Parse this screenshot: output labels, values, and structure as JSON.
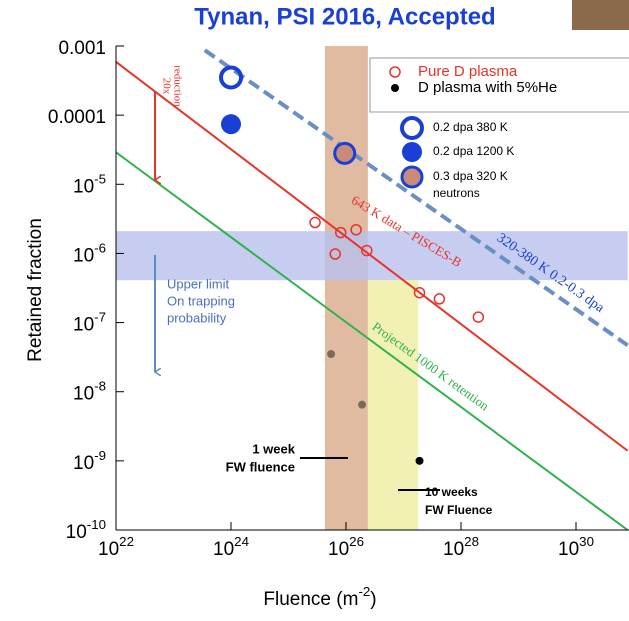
{
  "chart_data": {
    "type": "scatter",
    "title": "Tynan, PSI 2016, Accepted",
    "x_label": "Fluence (m^-2)",
    "y_label": "Retained fraction",
    "log_x": true,
    "log_y": true,
    "xlim": [
      1e+22,
      7.9e+30
    ],
    "ylim": [
      1e-10,
      0.001
    ],
    "xticks": [
      {
        "value": 1e+22,
        "label": "10^22"
      },
      {
        "value": 1e+24,
        "label": "10^24"
      },
      {
        "value": 1e+26,
        "label": "10^26"
      },
      {
        "value": 1e+28,
        "label": "10^28"
      },
      {
        "value": 1e+30,
        "label": "10^30"
      }
    ],
    "yticks": [
      {
        "value": 1e-10,
        "label": "10^-10"
      },
      {
        "value": 1e-09,
        "label": "10^-9"
      },
      {
        "value": 1e-08,
        "label": "10^-8"
      },
      {
        "value": 1e-07,
        "label": "10^-7"
      },
      {
        "value": 1e-06,
        "label": "10^-6"
      },
      {
        "value": 1e-05,
        "label": "10^-5"
      },
      0.0001,
      0.001
    ],
    "series": [
      {
        "name": "Pure D plasma",
        "color": "#e8332a",
        "marker": "open",
        "x": [
          2.9e+25,
          8.1e+25,
          1.5e+26,
          6.5e+25,
          2.3e+26,
          1.9e+27,
          4.2e+27,
          2e+28
        ],
        "values": [
          2.8e-06,
          2e-06,
          2.2e-06,
          9.8e-07,
          1.1e-06,
          2.7e-07,
          2.2e-07,
          1.2e-07
        ]
      },
      {
        "name": "D plasma with 5%He",
        "color": "#000000",
        "point_colors": [
          "#7a6a5a",
          "#7a6a5a",
          "#000000"
        ],
        "marker": "dot",
        "x": [
          5.5e+25,
          1.9e+26,
          1.9e+27
        ],
        "values": [
          3.5e-08,
          6.5e-09,
          1e-09
        ]
      },
      {
        "name": "0.2 dpa  380 K",
        "color": "#1a3fd6",
        "marker": "big-open",
        "x": [
          1e+24
        ],
        "values": [
          0.00035
        ]
      },
      {
        "name": "0.2 dpa  1200 K",
        "color": "#1a3fd6",
        "marker": "big-filled",
        "x": [
          1e+24
        ],
        "values": [
          7.4e-05
        ]
      },
      {
        "name": "0.3 dpa  320 K",
        "legend_note": "neutrons",
        "color": "#1a3fd6",
        "fill": "#c98a7a",
        "marker": "big-ring",
        "x": [
          9.5e+25
        ],
        "values": [
          2.8e-05
        ]
      }
    ],
    "lines": [
      {
        "color": "#e8332a",
        "dash": false,
        "x": [
          1e+22,
          7.9e+30
        ],
        "values": [
          0.00059,
          1.4e-09
        ]
      },
      {
        "color": "#2db34a",
        "dash": false,
        "x": [
          1e+22,
          7.9e+30
        ],
        "values": [
          2.9e-05,
          1e-10
        ]
      },
      {
        "color": "#6b8fc4",
        "dash": true,
        "x": [
          3.5e+23,
          7.9e+30
        ],
        "values": [
          0.00087,
          4.7e-08
        ]
      }
    ],
    "bands": [
      {
        "color": "#d8a98a",
        "x": [
          4.3e+25,
          2.4e+26
        ]
      },
      {
        "color": "#b8c0ee",
        "y": [
          4.1e-07,
          2.1e-06
        ]
      },
      {
        "color": "#eeeea0",
        "x": [
          2.4e+26,
          1.8e+27
        ],
        "y": [
          1e-10,
          4.1e-07
        ]
      }
    ],
    "annotations": [
      {
        "lines": [
          "20x",
          "reduction"
        ]
      },
      {
        "lines": [
          "643 K data – PISCES-B"
        ]
      },
      {
        "lines": [
          "320-380 K 0.2-0.3 dpa"
        ]
      },
      {
        "lines": [
          "Projected 1000 K retention"
        ]
      },
      {
        "lines": [
          "Upper limit",
          "On trapping",
          "probability"
        ]
      },
      {
        "lines": [
          "1 week",
          "FW fluence"
        ]
      },
      {
        "lines": [
          "10 weeks",
          "FW Fluence"
        ]
      }
    ]
  }
}
